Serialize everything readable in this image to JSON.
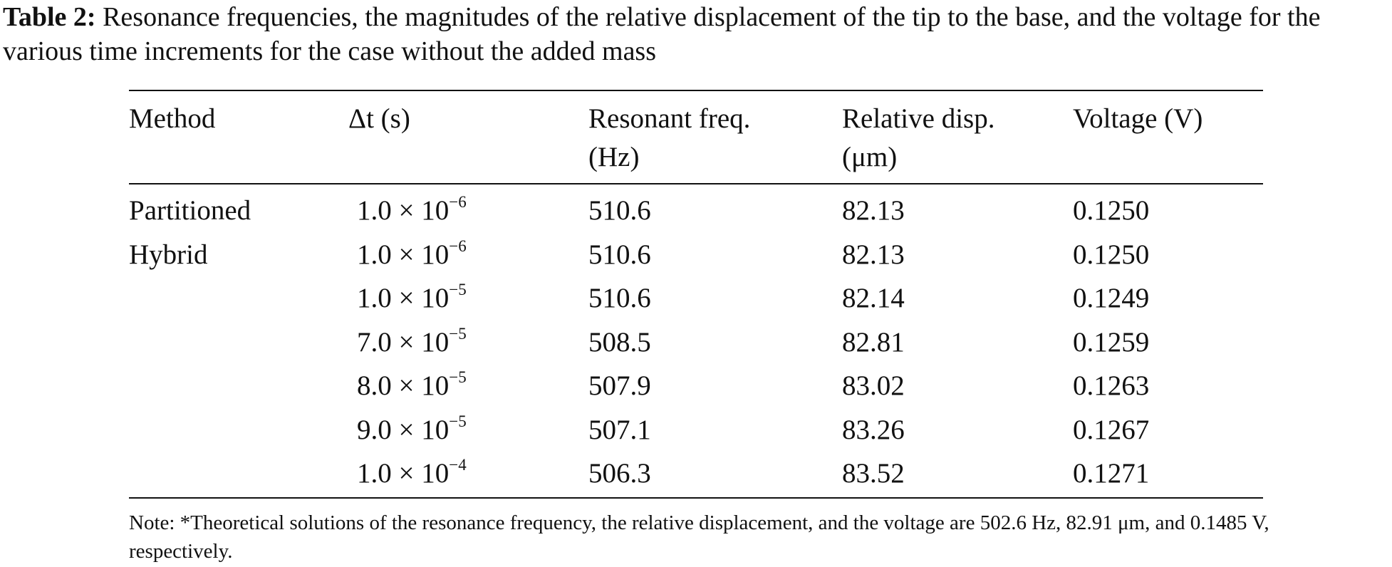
{
  "caption": {
    "label": "Table 2:",
    "text": "Resonance frequencies, the magnitudes of the relative displacement of the tip to the base, and the voltage for the various time increments for the case without the added mass"
  },
  "table": {
    "headers": [
      {
        "line1": "Method",
        "line2": ""
      },
      {
        "line1": "Δt (s)",
        "line2": ""
      },
      {
        "line1": "Resonant freq.",
        "line2": "(Hz)"
      },
      {
        "line1": "Relative disp.",
        "line2": "(μm)"
      },
      {
        "line1": "Voltage (V)",
        "line2": ""
      }
    ],
    "rows": [
      {
        "method": "Partitioned",
        "dt_base": "1.0 × 10",
        "dt_exp": "−6",
        "freq": "510.6",
        "disp": "82.13",
        "voltage": "0.1250"
      },
      {
        "method": "Hybrid",
        "dt_base": "1.0 × 10",
        "dt_exp": "−6",
        "freq": "510.6",
        "disp": "82.13",
        "voltage": "0.1250"
      },
      {
        "method": "",
        "dt_base": "1.0 × 10",
        "dt_exp": "−5",
        "freq": "510.6",
        "disp": "82.14",
        "voltage": "0.1249"
      },
      {
        "method": "",
        "dt_base": "7.0 × 10",
        "dt_exp": "−5",
        "freq": "508.5",
        "disp": "82.81",
        "voltage": "0.1259"
      },
      {
        "method": "",
        "dt_base": "8.0 × 10",
        "dt_exp": "−5",
        "freq": "507.9",
        "disp": "83.02",
        "voltage": "0.1263"
      },
      {
        "method": "",
        "dt_base": "9.0 × 10",
        "dt_exp": "−5",
        "freq": "507.1",
        "disp": "83.26",
        "voltage": "0.1267"
      },
      {
        "method": "",
        "dt_base": "1.0 × 10",
        "dt_exp": "−4",
        "freq": "506.3",
        "disp": "83.52",
        "voltage": "0.1271"
      }
    ]
  },
  "note": "Note: *Theoretical solutions of the resonance frequency, the relative displacement, and the voltage are 502.6 Hz, 82.91 μm, and 0.1485 V, respectively."
}
